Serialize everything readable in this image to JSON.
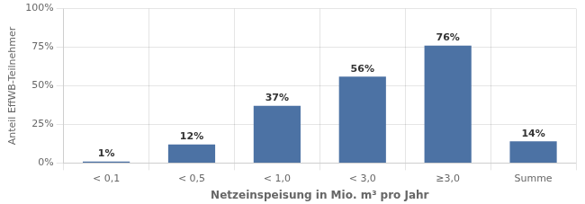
{
  "chart_data": {
    "type": "bar",
    "categories": [
      "< 0,1",
      "< 0,5",
      "< 1,0",
      "< 3,0",
      "≥3,0",
      "Summe"
    ],
    "values": [
      1,
      12,
      37,
      56,
      76,
      14
    ],
    "value_labels": [
      "1%",
      "12%",
      "37%",
      "56%",
      "76%",
      "14%"
    ],
    "data_labels": true,
    "color": "#4C72A4",
    "xlabel": "Netzeinspeisung in Mio. m³ pro Jahr",
    "ylabel": "Anteil EffWB-Teilnehmer",
    "ylim": [
      0,
      100
    ],
    "yticks": [
      {
        "value": 0,
        "label": "0%"
      },
      {
        "value": 25,
        "label": "25%"
      },
      {
        "value": 50,
        "label": "50%"
      },
      {
        "value": 75,
        "label": "75%"
      },
      {
        "value": 100,
        "label": "100%"
      }
    ],
    "grid": true
  }
}
